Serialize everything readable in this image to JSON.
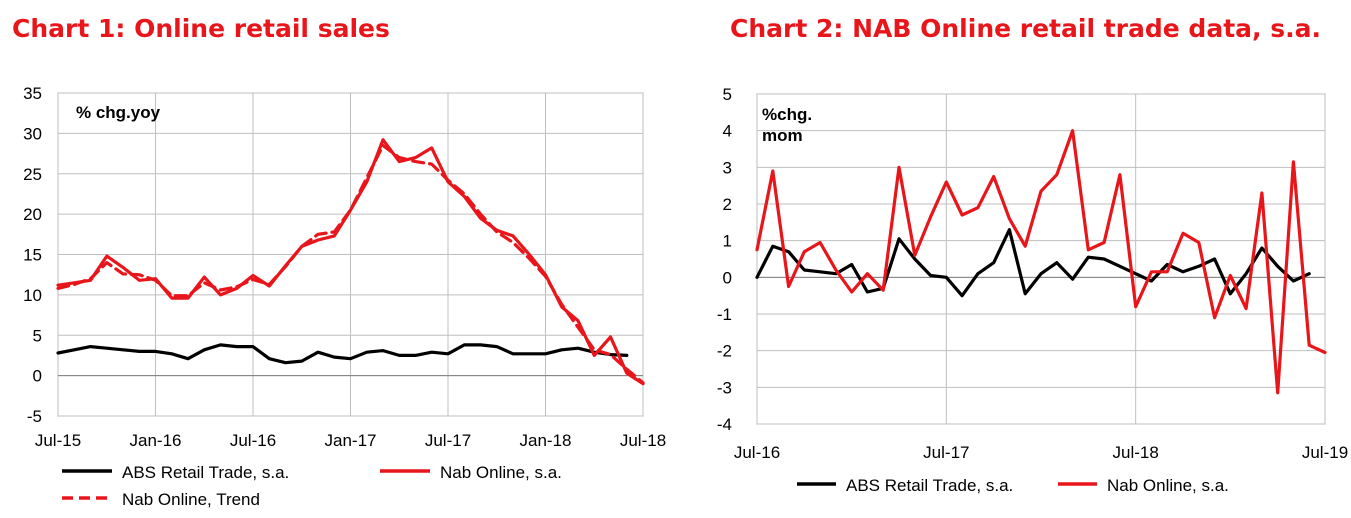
{
  "chart_data": [
    {
      "type": "line",
      "title": "Chart 1: Online retail sales",
      "annotation": "% chg.yoy",
      "ylim": [
        -5,
        35
      ],
      "yticks": [
        -5,
        0,
        5,
        10,
        15,
        20,
        25,
        30,
        35
      ],
      "xlim": [
        0,
        36
      ],
      "xticks": [
        {
          "x": 0,
          "label": "Jul-15"
        },
        {
          "x": 6,
          "label": "Jan-16"
        },
        {
          "x": 12,
          "label": "Jul-16"
        },
        {
          "x": 18,
          "label": "Jan-17"
        },
        {
          "x": 24,
          "label": "Jul-17"
        },
        {
          "x": 30,
          "label": "Jan-18"
        },
        {
          "x": 36,
          "label": "Jul-18"
        }
      ],
      "grid": true,
      "legend_position": "bottom",
      "series": [
        {
          "name": "ABS Retail Trade, s.a.",
          "color": "#000000",
          "dash": false,
          "x": [
            0,
            1,
            2,
            3,
            4,
            5,
            6,
            7,
            8,
            9,
            10,
            11,
            12,
            13,
            14,
            15,
            16,
            17,
            18,
            19,
            20,
            21,
            22,
            23,
            24,
            25,
            26,
            27,
            28,
            29,
            30,
            31,
            32,
            33,
            34,
            35
          ],
          "values": [
            2.8,
            3.2,
            3.6,
            3.4,
            3.2,
            3.0,
            3.0,
            2.7,
            2.1,
            3.2,
            3.8,
            3.6,
            3.6,
            2.1,
            1.6,
            1.8,
            2.9,
            2.3,
            2.1,
            2.9,
            3.1,
            2.5,
            2.5,
            2.9,
            2.7,
            3.8,
            3.8,
            3.6,
            2.7,
            2.7,
            2.7,
            3.2,
            3.4,
            2.9,
            2.6,
            2.5
          ]
        },
        {
          "name": "Nab Online, s.a.",
          "color": "#e8161b",
          "dash": false,
          "x": [
            0,
            1,
            2,
            3,
            4,
            5,
            6,
            7,
            8,
            9,
            10,
            11,
            12,
            13,
            14,
            15,
            16,
            17,
            18,
            19,
            20,
            21,
            22,
            23,
            24,
            25,
            26,
            27,
            28,
            29,
            30,
            31,
            32,
            33,
            34,
            35,
            36
          ],
          "values": [
            11.2,
            11.5,
            11.8,
            14.8,
            13.4,
            11.8,
            12.0,
            9.6,
            9.6,
            12.2,
            10.0,
            10.8,
            12.4,
            11.1,
            13.6,
            16.0,
            16.8,
            17.3,
            20.5,
            24.0,
            29.2,
            26.5,
            27.0,
            28.2,
            24.0,
            22.2,
            19.5,
            18.0,
            17.3,
            15.0,
            12.5,
            8.5,
            6.8,
            2.5,
            4.8,
            0.3,
            -1.0
          ]
        },
        {
          "name": "Nab Online, Trend",
          "color": "#e8161b",
          "dash": true,
          "x": [
            0,
            1,
            2,
            3,
            4,
            5,
            6,
            7,
            8,
            9,
            10,
            11,
            12,
            13,
            14,
            15,
            16,
            17,
            18,
            19,
            20,
            21,
            22,
            23,
            24,
            25,
            26,
            27,
            28,
            29,
            30,
            31,
            32,
            33,
            34,
            35,
            36
          ],
          "values": [
            10.8,
            11.3,
            12.0,
            14.0,
            12.6,
            12.5,
            11.8,
            9.9,
            9.9,
            11.5,
            10.6,
            11.0,
            11.9,
            11.3,
            13.5,
            16.0,
            17.5,
            17.8,
            20.5,
            24.5,
            28.5,
            27.0,
            26.5,
            26.2,
            24.2,
            22.5,
            20.0,
            17.8,
            16.5,
            14.5,
            12.3,
            8.8,
            6.0,
            3.2,
            2.6,
            0.8,
            -0.9
          ]
        }
      ]
    },
    {
      "type": "line",
      "title": "Chart 2: NAB Online retail trade data, s.a.",
      "annotation": [
        "%chg.",
        "mom"
      ],
      "ylim": [
        -4,
        5
      ],
      "yticks": [
        -4,
        -3,
        -2,
        -1,
        0,
        1,
        2,
        3,
        4,
        5
      ],
      "xlim": [
        0,
        36
      ],
      "xticks": [
        {
          "x": 0,
          "label": "Jul-16"
        },
        {
          "x": 12,
          "label": "Jul-17"
        },
        {
          "x": 24,
          "label": "Jul-18"
        },
        {
          "x": 36,
          "label": "Jul-19"
        }
      ],
      "grid": true,
      "legend_position": "bottom",
      "series": [
        {
          "name": "ABS Retail Trade, s.a.",
          "color": "#000000",
          "dash": false,
          "x": [
            0,
            1,
            2,
            3,
            4,
            5,
            6,
            7,
            8,
            9,
            10,
            11,
            12,
            13,
            14,
            15,
            16,
            17,
            18,
            19,
            20,
            21,
            22,
            23,
            24,
            25,
            26,
            27,
            28,
            29,
            30,
            31,
            32,
            33,
            34,
            35
          ],
          "values": [
            0.0,
            0.85,
            0.7,
            0.2,
            0.15,
            0.1,
            0.35,
            -0.4,
            -0.3,
            1.05,
            0.5,
            0.05,
            0.0,
            -0.5,
            0.1,
            0.4,
            1.3,
            -0.45,
            0.1,
            0.4,
            -0.05,
            0.55,
            0.5,
            0.3,
            0.1,
            -0.1,
            0.35,
            0.15,
            0.3,
            0.5,
            -0.45,
            0.1,
            0.8,
            0.3,
            -0.1,
            0.1
          ]
        },
        {
          "name": "Nab Online, s.a.",
          "color": "#e8161b",
          "dash": false,
          "x": [
            0,
            1,
            2,
            3,
            4,
            5,
            6,
            7,
            8,
            9,
            10,
            11,
            12,
            13,
            14,
            15,
            16,
            17,
            18,
            19,
            20,
            21,
            22,
            23,
            24,
            25,
            26,
            27,
            28,
            29,
            30,
            31,
            32,
            33,
            34,
            35,
            36
          ],
          "values": [
            0.75,
            2.9,
            -0.25,
            0.7,
            0.95,
            0.2,
            -0.4,
            0.1,
            -0.35,
            3.0,
            0.6,
            1.65,
            2.6,
            1.7,
            1.9,
            2.75,
            1.6,
            0.85,
            2.35,
            2.8,
            4.0,
            0.75,
            0.95,
            2.8,
            -0.8,
            0.15,
            0.15,
            1.2,
            0.95,
            -1.1,
            0.05,
            -0.85,
            2.3,
            -3.15,
            3.15,
            -1.85,
            -2.05
          ]
        }
      ]
    }
  ]
}
